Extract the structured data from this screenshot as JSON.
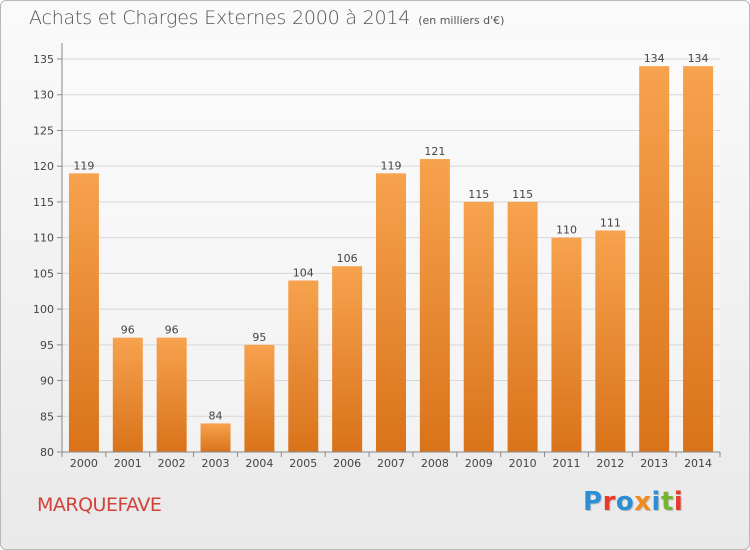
{
  "header": {
    "title": "Achats et Charges Externes 2000 à 2014",
    "unit": "(en milliers d'€)"
  },
  "footer": {
    "city": "MARQUEFAVE",
    "logo_letters": [
      "P",
      "r",
      "o",
      "x",
      "i",
      "t",
      "i"
    ],
    "logo_colors": [
      "#2b8fd6",
      "#e8392d",
      "#2b8fd6",
      "#f08a1c",
      "#2b8fd6",
      "#75b531",
      "#e8392d"
    ]
  },
  "chart_data": {
    "type": "bar",
    "categories": [
      "2000",
      "2001",
      "2002",
      "2003",
      "2004",
      "2005",
      "2006",
      "2007",
      "2008",
      "2009",
      "2010",
      "2011",
      "2012",
      "2013",
      "2014"
    ],
    "values": [
      119,
      96,
      96,
      84,
      95,
      104,
      106,
      119,
      121,
      115,
      115,
      110,
      111,
      134,
      134
    ],
    "ylim": [
      80,
      135
    ],
    "yticks": [
      80,
      85,
      90,
      95,
      100,
      105,
      110,
      115,
      120,
      125,
      130,
      135
    ],
    "grid": true,
    "bar_color_top": "#f7a24e",
    "bar_color_bottom": "#d9731a"
  }
}
